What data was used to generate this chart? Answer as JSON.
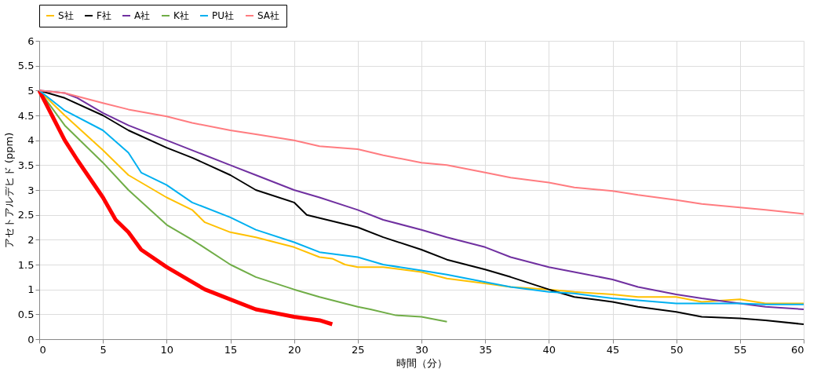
{
  "chart_data": {
    "type": "line",
    "xlabel": "時間（分）",
    "ylabel": "アセトアルデヒド (ppm)",
    "xlim": [
      0,
      60
    ],
    "xticks": [
      0,
      5,
      10,
      15,
      20,
      25,
      30,
      35,
      40,
      45,
      50,
      55,
      60
    ],
    "ylim": [
      0,
      6
    ],
    "yticks": [
      0,
      0.5,
      1,
      1.5,
      2,
      2.5,
      3,
      3.5,
      4,
      4.5,
      5,
      5.5,
      6
    ],
    "grid": true,
    "legend": "top",
    "marker": "none",
    "line_style": "solid",
    "series": [
      {
        "name": "S社",
        "color": "#ffc000",
        "x": [
          0,
          2,
          5,
          7,
          10,
          12,
          13,
          15,
          17,
          20,
          22,
          23,
          24,
          25,
          27,
          30,
          32,
          35,
          37,
          40,
          42,
          45,
          47,
          50,
          52,
          55,
          57,
          60
        ],
        "values": [
          5,
          4.5,
          3.8,
          3.3,
          2.85,
          2.6,
          2.35,
          2.15,
          2.05,
          1.85,
          1.65,
          1.62,
          1.5,
          1.45,
          1.45,
          1.35,
          1.22,
          1.12,
          1.05,
          1.0,
          0.95,
          0.9,
          0.85,
          0.85,
          0.75,
          0.8,
          0.72,
          0.72
        ]
      },
      {
        "name": "F社",
        "color": "#000000",
        "x": [
          0,
          2,
          5,
          7,
          10,
          12,
          15,
          17,
          20,
          21,
          25,
          27,
          30,
          32,
          35,
          37,
          40,
          42,
          45,
          47,
          50,
          52,
          55,
          57,
          60
        ],
        "values": [
          5,
          4.85,
          4.5,
          4.2,
          3.85,
          3.65,
          3.3,
          3.0,
          2.75,
          2.5,
          2.25,
          2.05,
          1.8,
          1.6,
          1.4,
          1.25,
          1.0,
          0.85,
          0.75,
          0.65,
          0.55,
          0.45,
          0.42,
          0.38,
          0.3
        ]
      },
      {
        "name": "A社",
        "color": "#7030a0",
        "x": [
          0,
          2,
          3,
          5,
          7,
          10,
          12,
          15,
          17,
          20,
          22,
          25,
          27,
          30,
          32,
          35,
          37,
          40,
          42,
          45,
          47,
          50,
          52,
          55,
          57,
          60
        ],
        "values": [
          5,
          4.95,
          4.85,
          4.55,
          4.3,
          4.0,
          3.8,
          3.5,
          3.3,
          3.0,
          2.85,
          2.6,
          2.4,
          2.2,
          2.05,
          1.85,
          1.65,
          1.45,
          1.35,
          1.2,
          1.05,
          0.9,
          0.82,
          0.72,
          0.65,
          0.6
        ]
      },
      {
        "name": "K社",
        "color": "#70ad47",
        "x": [
          0,
          2,
          5,
          7,
          10,
          12,
          15,
          17,
          20,
          22,
          25,
          26,
          28,
          30,
          32
        ],
        "values": [
          5,
          4.3,
          3.55,
          3.0,
          2.3,
          2.0,
          1.5,
          1.25,
          1.0,
          0.85,
          0.65,
          0.6,
          0.48,
          0.45,
          0.35
        ]
      },
      {
        "color": "#ff0000",
        "x": [
          0,
          1,
          2,
          3,
          5,
          6,
          7,
          8,
          10,
          12,
          13,
          15,
          17,
          18,
          20,
          22,
          23
        ],
        "values": [
          5,
          4.5,
          4.0,
          3.6,
          2.85,
          2.4,
          2.15,
          1.8,
          1.45,
          1.15,
          1.0,
          0.8,
          0.6,
          0.55,
          0.45,
          0.38,
          0.3
        ]
      },
      {
        "name": "PU社",
        "color": "#00b0f0",
        "x": [
          0,
          2,
          5,
          7,
          8,
          10,
          12,
          15,
          17,
          20,
          22,
          25,
          27,
          30,
          32,
          35,
          37,
          40,
          42,
          45,
          47,
          50,
          52,
          55,
          57,
          60
        ],
        "values": [
          5,
          4.6,
          4.2,
          3.75,
          3.35,
          3.1,
          2.75,
          2.45,
          2.2,
          1.95,
          1.75,
          1.65,
          1.5,
          1.38,
          1.3,
          1.15,
          1.05,
          0.95,
          0.92,
          0.82,
          0.78,
          0.72,
          0.72,
          0.72,
          0.7,
          0.7
        ]
      },
      {
        "name": "SA社",
        "color": "#ff7c80",
        "x": [
          0,
          2,
          5,
          7,
          10,
          12,
          15,
          17,
          20,
          22,
          25,
          27,
          30,
          32,
          35,
          37,
          40,
          42,
          45,
          47,
          50,
          52,
          55,
          57,
          60
        ],
        "values": [
          5,
          4.95,
          4.75,
          4.62,
          4.48,
          4.35,
          4.2,
          4.12,
          4.0,
          3.88,
          3.82,
          3.7,
          3.55,
          3.5,
          3.35,
          3.25,
          3.15,
          3.05,
          2.98,
          2.9,
          2.8,
          2.72,
          2.65,
          2.6,
          2.52
        ]
      }
    ]
  }
}
